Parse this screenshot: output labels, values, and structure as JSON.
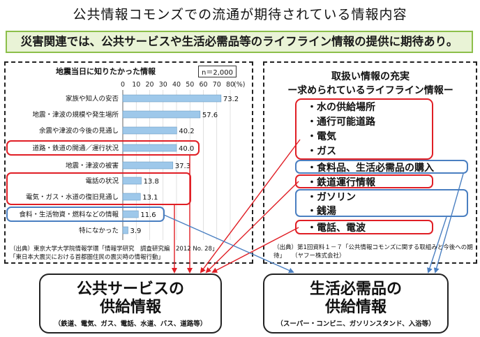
{
  "title": "公共情報コモンズでの流通が期待されている情報内容",
  "banner": "災害関連では、公共サービスや生活必需品等のライフライン情報の提供に期待あり。",
  "left_source": {
    "line1": "（出典）東京大学大学院情報学環「情報学研究　調査研究編　2012 No. 28」",
    "line2": "「東日本大震災における首都圏住民の震災時の情報行動」"
  },
  "chart_data": {
    "type": "bar",
    "orientation": "horizontal",
    "title": "地震当日に知りたかった情報",
    "note": "n＝2,000",
    "unit": "(%)",
    "xlim": [
      0,
      80
    ],
    "ticks": [
      0,
      10,
      20,
      30,
      40,
      50,
      60,
      70,
      80
    ],
    "categories": [
      "家族や知人の安否",
      "地震・津波の規模や発生場所",
      "余震や津波の今後の見通し",
      "道路・鉄道の開通／運行状況",
      "地震・津波の被害",
      "電話の状況",
      "電気・ガス・水道の復旧見通し",
      "食料・生活物資・燃料などの情報",
      "特になかった"
    ],
    "values": [
      73.2,
      57.6,
      40.2,
      40.0,
      37.3,
      13.8,
      13.1,
      11.6,
      3.9
    ],
    "value_labels": [
      "73.2",
      "57.6",
      "40.2",
      "40.0",
      "37.3",
      "13.8",
      "13.1",
      "11.6",
      "3.9"
    ],
    "bar_color": "#9ec8ea",
    "highlight_red": [
      "道路・鉄道の開通／運行状況",
      "電話の状況",
      "電気・ガス・水道の復旧見通し"
    ],
    "highlight_blue": [
      "食料・生活物資・燃料などの情報"
    ]
  },
  "right_panel": {
    "title1": "取扱い情報の充実",
    "title2": "ー求められているライフライン情報ー",
    "group_utilities": [
      "・水の供給場所",
      "・通行可能道路",
      "・電気",
      "・ガス"
    ],
    "item_food": "・食料品、生活必需品の購入",
    "item_rail": "・鉄道運行情報",
    "group_fuel": [
      "・ガソリン",
      "・銭湯"
    ],
    "item_phone": "・電話、電波",
    "source1": "（出典）第1回資料１－７「公共情報コモンズに関する取組みと今後への期待」",
    "source2": "（ヤフー株式会社）"
  },
  "bottom": {
    "public_title1": "公共サービスの",
    "public_title2": "供給情報",
    "public_sub": "（鉄道、電気、ガス、電話、水道、バス、道路等）",
    "daily_title1": "生活必需品の",
    "daily_title2": "供給情報",
    "daily_sub": "（スーパー・コンビニ、ガソリンスタンド、入浴等）"
  },
  "colors": {
    "red": "#e01e25",
    "blue": "#4a7fc1",
    "green": "#8cbf4a"
  }
}
